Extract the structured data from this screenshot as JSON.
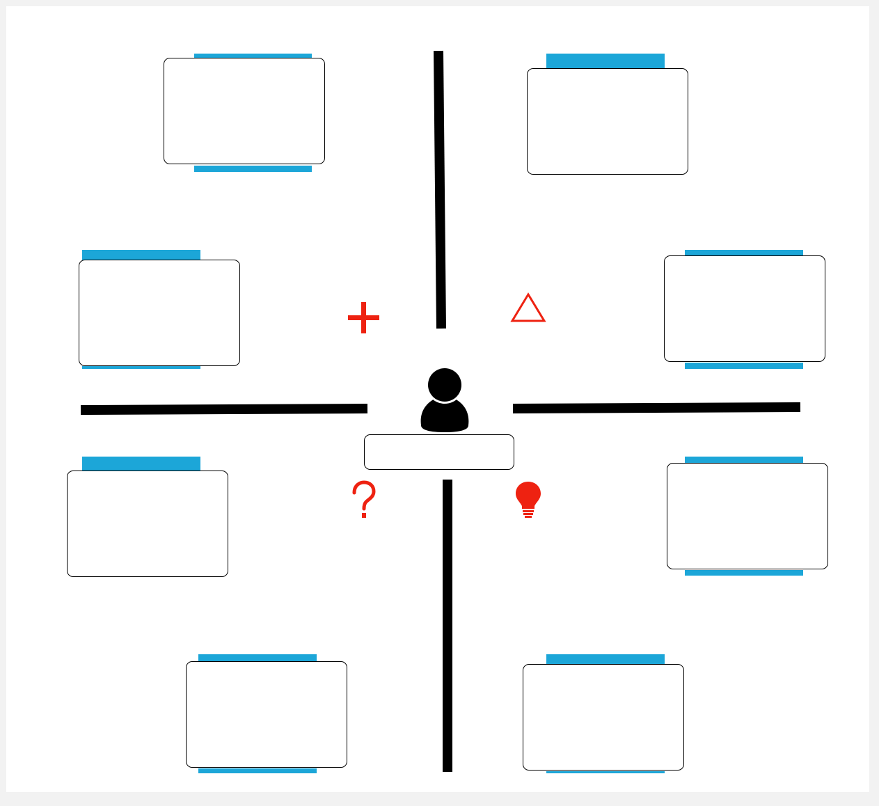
{
  "diagram": {
    "center": {
      "icon": "person-icon",
      "name_value": ""
    },
    "quadrant_icons": {
      "top_left": "plus-icon",
      "top_right": "triangle-warning-icon",
      "bottom_left": "question-mark-icon",
      "bottom_right": "lightbulb-icon"
    },
    "cards": [
      {
        "id": "top-left-upper",
        "value": ""
      },
      {
        "id": "top-right-upper",
        "value": ""
      },
      {
        "id": "left-upper",
        "value": ""
      },
      {
        "id": "right-upper",
        "value": ""
      },
      {
        "id": "left-lower",
        "value": ""
      },
      {
        "id": "right-lower",
        "value": ""
      },
      {
        "id": "bottom-left-lower",
        "value": ""
      },
      {
        "id": "bottom-right-lower",
        "value": ""
      }
    ],
    "colors": {
      "accent_tab": "#1ca6d8",
      "icon_red": "#ee2211",
      "axis": "#000000",
      "background": "#f2f2f2"
    }
  }
}
